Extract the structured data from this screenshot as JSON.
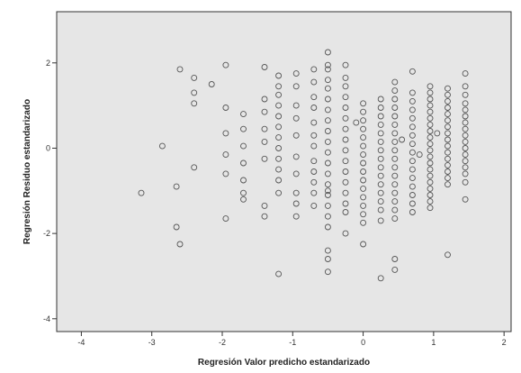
{
  "chart_data": {
    "type": "scatter",
    "title": "",
    "xlabel": "Regresión Valor predicho estandarizado",
    "ylabel": "Regresión Residuo estandarizado",
    "xlim": [
      -4.35,
      2.1
    ],
    "ylim": [
      -4.3,
      3.2
    ],
    "xticks": [
      -4,
      -3,
      -2,
      -1,
      0,
      1,
      2
    ],
    "yticks": [
      -4,
      -2,
      0,
      2
    ],
    "xtick_labels": [
      "-4",
      "-3",
      "-2",
      "-1",
      "0",
      "1",
      "2"
    ],
    "ytick_labels": [
      "-4",
      "-2",
      "0",
      "2"
    ],
    "grid": false,
    "legend": "none",
    "colors": {
      "plot_background": "#e6e6e6",
      "marker_edge": "#555555",
      "axis": "#333333"
    },
    "series": [
      {
        "x": [
          -3.15,
          -2.85,
          -2.65,
          -2.65,
          -2.6,
          -2.6,
          -2.4,
          -2.4,
          -2.4,
          -2.4,
          -2.15,
          -1.95,
          -1.95,
          -1.95,
          -1.95,
          -1.95,
          -1.95,
          -1.7,
          -1.7,
          -1.7,
          -1.7,
          -1.7,
          -1.7,
          -1.7,
          -1.4,
          -1.4,
          -1.4,
          -1.4,
          -1.4,
          -1.4,
          -1.4,
          -1.4,
          -1.2,
          -1.2,
          -1.2,
          -1.2,
          -1.2,
          -1.2,
          -1.2,
          -1.2,
          -1.2,
          -1.2,
          -1.2,
          -1.2,
          -1.2,
          -0.95,
          -0.95,
          -0.95,
          -0.95,
          -0.95,
          -0.95,
          -0.95,
          -0.95,
          -0.95,
          -0.95,
          -0.7,
          -0.7,
          -0.7,
          -0.7,
          -0.7,
          -0.7,
          -0.7,
          -0.7,
          -0.7,
          -0.7,
          -0.7,
          -0.7,
          -0.5,
          -0.5,
          -0.5,
          -0.5,
          -0.5,
          -0.5,
          -0.5,
          -0.5,
          -0.5,
          -0.5,
          -0.5,
          -0.5,
          -0.5,
          -0.5,
          -0.5,
          -0.5,
          -0.5,
          -0.5,
          -0.5,
          -0.5,
          -0.5,
          -0.5,
          -0.25,
          -0.25,
          -0.25,
          -0.25,
          -0.25,
          -0.25,
          -0.25,
          -0.25,
          -0.25,
          -0.25,
          -0.25,
          -0.25,
          -0.25,
          -0.25,
          -0.25,
          -0.25,
          0.0,
          0.0,
          0.0,
          0.0,
          0.0,
          0.0,
          0.0,
          0.0,
          0.0,
          0.0,
          0.0,
          0.0,
          0.0,
          0.0,
          0.0,
          0.0,
          0.25,
          0.25,
          0.25,
          0.25,
          0.25,
          0.25,
          0.25,
          0.25,
          0.25,
          0.25,
          0.25,
          0.25,
          0.25,
          0.25,
          0.25,
          0.25,
          0.45,
          0.45,
          0.45,
          0.45,
          0.45,
          0.45,
          0.45,
          0.45,
          0.45,
          0.45,
          0.45,
          0.45,
          0.45,
          0.45,
          0.45,
          0.45,
          0.45,
          0.45,
          0.45,
          0.7,
          0.7,
          0.7,
          0.7,
          0.7,
          0.7,
          0.7,
          0.7,
          0.7,
          0.7,
          0.7,
          0.7,
          0.7,
          0.7,
          0.7,
          0.7,
          0.95,
          0.95,
          0.95,
          0.95,
          0.95,
          0.95,
          0.95,
          0.95,
          0.95,
          0.95,
          0.95,
          0.95,
          0.95,
          0.95,
          0.95,
          0.95,
          0.95,
          0.95,
          0.95,
          0.95,
          1.2,
          1.2,
          1.2,
          1.2,
          1.2,
          1.2,
          1.2,
          1.2,
          1.2,
          1.2,
          1.2,
          1.2,
          1.2,
          1.2,
          1.2,
          1.2,
          1.2,
          1.45,
          1.45,
          1.45,
          1.45,
          1.45,
          1.45,
          1.45,
          1.45,
          1.45,
          1.45,
          1.45,
          1.45,
          1.45,
          1.45,
          1.45,
          1.45,
          1.45,
          -0.1,
          0.55,
          0.8,
          1.05
        ],
        "y": [
          -1.05,
          0.05,
          -0.9,
          -1.85,
          1.85,
          -2.25,
          1.65,
          1.3,
          1.05,
          -0.45,
          1.5,
          1.95,
          0.95,
          0.35,
          -0.15,
          -0.6,
          -1.65,
          0.8,
          0.45,
          0.05,
          -0.35,
          -0.75,
          -1.05,
          -1.2,
          1.9,
          1.15,
          0.85,
          0.45,
          0.15,
          -0.25,
          -1.35,
          -1.6,
          1.7,
          1.45,
          1.25,
          1.0,
          0.75,
          0.5,
          0.25,
          0.0,
          -0.25,
          -0.5,
          -0.75,
          -1.05,
          -2.95,
          1.75,
          1.45,
          1.0,
          0.7,
          0.3,
          -0.2,
          -0.6,
          -1.05,
          -1.3,
          -1.6,
          1.85,
          1.55,
          1.2,
          0.95,
          0.6,
          0.3,
          0.05,
          -0.3,
          -0.55,
          -0.8,
          -1.05,
          -1.35,
          2.25,
          1.85,
          1.6,
          1.4,
          1.15,
          0.9,
          0.65,
          0.4,
          0.15,
          -0.1,
          -0.35,
          -0.6,
          -0.85,
          -1.1,
          -1.35,
          -1.6,
          -2.4,
          -2.6,
          -2.9,
          1.95,
          -1.85,
          -1.0,
          1.95,
          1.65,
          1.45,
          1.2,
          0.95,
          0.7,
          0.45,
          0.2,
          -0.05,
          -0.3,
          -0.55,
          -0.8,
          -1.05,
          -1.3,
          -1.5,
          -2.0,
          1.05,
          0.85,
          0.65,
          0.45,
          0.25,
          0.05,
          -0.15,
          -0.35,
          -0.55,
          -0.75,
          -0.95,
          -1.15,
          -1.35,
          -1.55,
          -1.75,
          -2.25,
          1.15,
          0.95,
          0.75,
          0.55,
          0.35,
          0.15,
          -0.05,
          -0.25,
          -0.45,
          -0.65,
          -0.85,
          -1.05,
          -1.25,
          -1.45,
          -1.7,
          -3.05,
          1.55,
          1.35,
          1.15,
          0.95,
          0.75,
          0.55,
          0.35,
          0.15,
          -0.05,
          -0.25,
          -0.45,
          -0.65,
          -0.85,
          -1.05,
          -1.25,
          -1.45,
          -1.65,
          -2.6,
          -2.85,
          1.3,
          1.1,
          0.9,
          0.7,
          0.5,
          0.3,
          0.1,
          -0.1,
          -0.3,
          -0.5,
          -0.7,
          -0.9,
          -1.1,
          -1.3,
          -1.5,
          1.8,
          1.45,
          1.3,
          1.15,
          1.0,
          0.85,
          0.7,
          0.55,
          0.4,
          0.25,
          0.1,
          -0.05,
          -0.2,
          -0.35,
          -0.5,
          -0.65,
          -0.8,
          -0.95,
          -1.1,
          -1.25,
          -1.4,
          1.4,
          1.25,
          1.1,
          0.95,
          0.8,
          0.65,
          0.5,
          0.35,
          0.2,
          0.05,
          -0.1,
          -0.25,
          -0.4,
          -0.55,
          -0.7,
          -0.85,
          -2.5,
          1.75,
          1.45,
          1.25,
          1.05,
          0.9,
          0.75,
          0.6,
          0.45,
          0.3,
          0.15,
          0.0,
          -0.15,
          -0.3,
          -0.45,
          -0.6,
          -0.8,
          -1.2,
          0.6,
          0.2,
          -0.15,
          0.35
        ]
      }
    ]
  }
}
